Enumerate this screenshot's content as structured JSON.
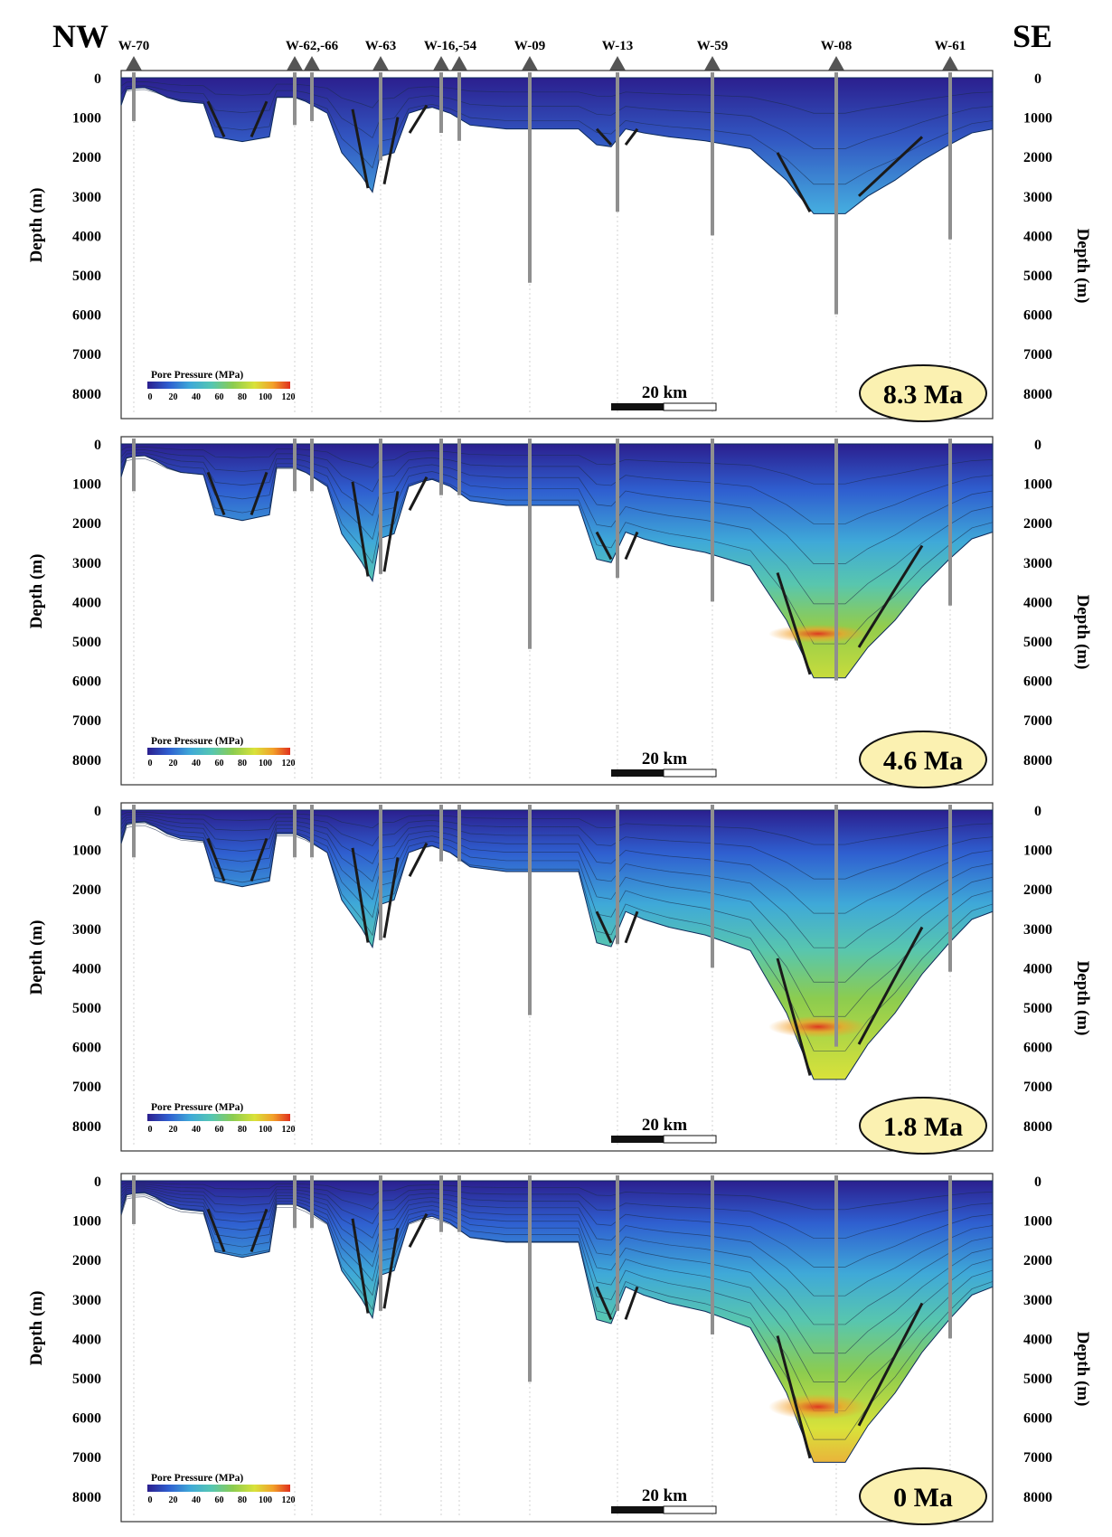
{
  "figure": {
    "direction_left": "NW",
    "direction_right": "SE",
    "wells": [
      "W-70",
      "W-62,-66",
      "W-63",
      "W-16,-54",
      "W-09",
      "W-13",
      "W-59",
      "W-08",
      "W-61"
    ],
    "depth_axis_label": "Depth (m)",
    "depth_ticks": [
      "0",
      "1000",
      "2000",
      "3000",
      "4000",
      "5000",
      "6000",
      "7000",
      "8000"
    ],
    "legend": {
      "title": "Pore Pressure (MPa)",
      "ticks": [
        "0",
        "20",
        "40",
        "60",
        "80",
        "100",
        "120"
      ],
      "color_stops": [
        "#2b1f8e",
        "#2f5fd0",
        "#3fa9d8",
        "#55c6b2",
        "#8ccc4f",
        "#d9e23a",
        "#f2a02a",
        "#e0301e"
      ]
    },
    "scale_bar_label": "20 km",
    "panels": [
      {
        "age": "8.3 Ma",
        "basin_max_depth_m": 3500
      },
      {
        "age": "4.6 Ma",
        "basin_max_depth_m": 6000
      },
      {
        "age": "1.8 Ma",
        "basin_max_depth_m": 6900
      },
      {
        "age": "0 Ma",
        "basin_max_depth_m": 7200
      }
    ],
    "colors": {
      "age_badge": "#fbf1b1",
      "well_line": "#8f8f8f",
      "fault_line": "#1a1a1a",
      "marker": "#555555"
    }
  }
}
